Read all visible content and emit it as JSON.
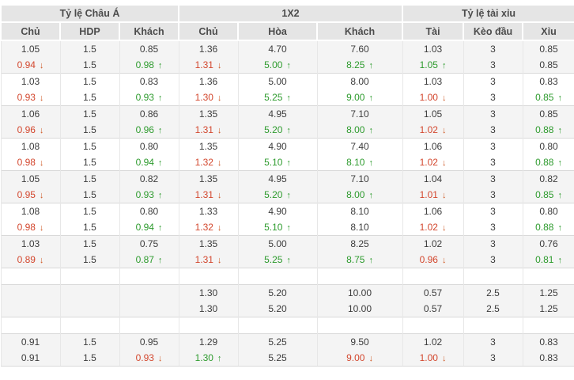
{
  "header": {
    "groups": [
      {
        "label": "Tỷ lệ Châu Á",
        "span": 3
      },
      {
        "label": "1X2",
        "span": 3
      },
      {
        "label": "Tỷ lệ tài xỉu",
        "span": 3
      }
    ],
    "columns": [
      "Chủ",
      "HDP",
      "Khách",
      "Chủ",
      "Hòa",
      "Khách",
      "Tài",
      "Kèo đầu",
      "Xỉu"
    ]
  },
  "icons": {
    "up": "↑",
    "down": "↓"
  },
  "colors": {
    "up": "#2e9b2e",
    "down": "#d3472e",
    "header_bg": "#e5e5e5",
    "row_alt_bg": "#f4f4f4",
    "border": "#d9d9d9"
  },
  "rows": [
    {
      "shade": "gray",
      "block_start": true,
      "cells": [
        {
          "v": "1.05"
        },
        {
          "v": "1.5"
        },
        {
          "v": "0.85"
        },
        {
          "v": "1.36"
        },
        {
          "v": "4.70"
        },
        {
          "v": "7.60"
        },
        {
          "v": "1.03"
        },
        {
          "v": "3"
        },
        {
          "v": "0.85"
        }
      ]
    },
    {
      "shade": "gray",
      "block_start": false,
      "cells": [
        {
          "v": "0.94",
          "t": "down"
        },
        {
          "v": "1.5"
        },
        {
          "v": "0.98",
          "t": "up"
        },
        {
          "v": "1.31",
          "t": "down"
        },
        {
          "v": "5.00",
          "t": "up"
        },
        {
          "v": "8.25",
          "t": "up"
        },
        {
          "v": "1.05",
          "t": "up"
        },
        {
          "v": "3"
        },
        {
          "v": "0.85"
        }
      ]
    },
    {
      "shade": "white",
      "block_start": true,
      "cells": [
        {
          "v": "1.03"
        },
        {
          "v": "1.5"
        },
        {
          "v": "0.83"
        },
        {
          "v": "1.36"
        },
        {
          "v": "5.00"
        },
        {
          "v": "8.00"
        },
        {
          "v": "1.03"
        },
        {
          "v": "3"
        },
        {
          "v": "0.83"
        }
      ]
    },
    {
      "shade": "white",
      "block_start": false,
      "cells": [
        {
          "v": "0.93",
          "t": "down"
        },
        {
          "v": "1.5"
        },
        {
          "v": "0.93",
          "t": "up"
        },
        {
          "v": "1.30",
          "t": "down"
        },
        {
          "v": "5.25",
          "t": "up"
        },
        {
          "v": "9.00",
          "t": "up"
        },
        {
          "v": "1.00",
          "t": "down"
        },
        {
          "v": "3"
        },
        {
          "v": "0.85",
          "t": "up"
        }
      ]
    },
    {
      "shade": "gray",
      "block_start": true,
      "cells": [
        {
          "v": "1.06"
        },
        {
          "v": "1.5"
        },
        {
          "v": "0.86"
        },
        {
          "v": "1.35"
        },
        {
          "v": "4.95"
        },
        {
          "v": "7.10"
        },
        {
          "v": "1.05"
        },
        {
          "v": "3"
        },
        {
          "v": "0.85"
        }
      ]
    },
    {
      "shade": "gray",
      "block_start": false,
      "cells": [
        {
          "v": "0.96",
          "t": "down"
        },
        {
          "v": "1.5"
        },
        {
          "v": "0.96",
          "t": "up"
        },
        {
          "v": "1.31",
          "t": "down"
        },
        {
          "v": "5.20",
          "t": "up"
        },
        {
          "v": "8.00",
          "t": "up"
        },
        {
          "v": "1.02",
          "t": "down"
        },
        {
          "v": "3"
        },
        {
          "v": "0.88",
          "t": "up"
        }
      ]
    },
    {
      "shade": "white",
      "block_start": true,
      "cells": [
        {
          "v": "1.08"
        },
        {
          "v": "1.5"
        },
        {
          "v": "0.80"
        },
        {
          "v": "1.35"
        },
        {
          "v": "4.90"
        },
        {
          "v": "7.40"
        },
        {
          "v": "1.06"
        },
        {
          "v": "3"
        },
        {
          "v": "0.80"
        }
      ]
    },
    {
      "shade": "white",
      "block_start": false,
      "cells": [
        {
          "v": "0.98",
          "t": "down"
        },
        {
          "v": "1.5"
        },
        {
          "v": "0.94",
          "t": "up"
        },
        {
          "v": "1.32",
          "t": "down"
        },
        {
          "v": "5.10",
          "t": "up"
        },
        {
          "v": "8.10",
          "t": "up"
        },
        {
          "v": "1.02",
          "t": "down"
        },
        {
          "v": "3"
        },
        {
          "v": "0.88",
          "t": "up"
        }
      ]
    },
    {
      "shade": "gray",
      "block_start": true,
      "cells": [
        {
          "v": "1.05"
        },
        {
          "v": "1.5"
        },
        {
          "v": "0.82"
        },
        {
          "v": "1.35"
        },
        {
          "v": "4.95"
        },
        {
          "v": "7.10"
        },
        {
          "v": "1.04"
        },
        {
          "v": "3"
        },
        {
          "v": "0.82"
        }
      ]
    },
    {
      "shade": "gray",
      "block_start": false,
      "cells": [
        {
          "v": "0.95",
          "t": "down"
        },
        {
          "v": "1.5"
        },
        {
          "v": "0.93",
          "t": "up"
        },
        {
          "v": "1.31",
          "t": "down"
        },
        {
          "v": "5.20",
          "t": "up"
        },
        {
          "v": "8.00",
          "t": "up"
        },
        {
          "v": "1.01",
          "t": "down"
        },
        {
          "v": "3"
        },
        {
          "v": "0.85",
          "t": "up"
        }
      ]
    },
    {
      "shade": "white",
      "block_start": true,
      "cells": [
        {
          "v": "1.08"
        },
        {
          "v": "1.5"
        },
        {
          "v": "0.80"
        },
        {
          "v": "1.33"
        },
        {
          "v": "4.90"
        },
        {
          "v": "8.10"
        },
        {
          "v": "1.06"
        },
        {
          "v": "3"
        },
        {
          "v": "0.80"
        }
      ]
    },
    {
      "shade": "white",
      "block_start": false,
      "cells": [
        {
          "v": "0.98",
          "t": "down"
        },
        {
          "v": "1.5"
        },
        {
          "v": "0.94",
          "t": "up"
        },
        {
          "v": "1.32",
          "t": "down"
        },
        {
          "v": "5.10",
          "t": "up"
        },
        {
          "v": "8.10"
        },
        {
          "v": "1.02",
          "t": "down"
        },
        {
          "v": "3"
        },
        {
          "v": "0.88",
          "t": "up"
        }
      ]
    },
    {
      "shade": "gray",
      "block_start": true,
      "cells": [
        {
          "v": "1.03"
        },
        {
          "v": "1.5"
        },
        {
          "v": "0.75"
        },
        {
          "v": "1.35"
        },
        {
          "v": "5.00"
        },
        {
          "v": "8.25"
        },
        {
          "v": "1.02"
        },
        {
          "v": "3"
        },
        {
          "v": "0.76"
        }
      ]
    },
    {
      "shade": "gray",
      "block_start": false,
      "cells": [
        {
          "v": "0.89",
          "t": "down"
        },
        {
          "v": "1.5"
        },
        {
          "v": "0.87",
          "t": "up"
        },
        {
          "v": "1.31",
          "t": "down"
        },
        {
          "v": "5.25",
          "t": "up"
        },
        {
          "v": "8.75",
          "t": "up"
        },
        {
          "v": "0.96",
          "t": "down"
        },
        {
          "v": "3"
        },
        {
          "v": "0.81",
          "t": "up"
        }
      ]
    },
    {
      "shade": "white",
      "block_start": true,
      "spacer": true,
      "cells": [
        {},
        {},
        {},
        {},
        {},
        {},
        {},
        {},
        {}
      ]
    },
    {
      "shade": "gray",
      "block_start": true,
      "cells": [
        {
          "v": ""
        },
        {
          "v": ""
        },
        {
          "v": ""
        },
        {
          "v": "1.30"
        },
        {
          "v": "5.20"
        },
        {
          "v": "10.00"
        },
        {
          "v": "0.57"
        },
        {
          "v": "2.5"
        },
        {
          "v": "1.25"
        }
      ]
    },
    {
      "shade": "gray",
      "block_start": false,
      "cells": [
        {
          "v": ""
        },
        {
          "v": ""
        },
        {
          "v": ""
        },
        {
          "v": "1.30"
        },
        {
          "v": "5.20"
        },
        {
          "v": "10.00"
        },
        {
          "v": "0.57"
        },
        {
          "v": "2.5"
        },
        {
          "v": "1.25"
        }
      ]
    },
    {
      "shade": "white",
      "block_start": true,
      "spacer": true,
      "cells": [
        {},
        {},
        {},
        {},
        {},
        {},
        {},
        {},
        {}
      ]
    },
    {
      "shade": "gray",
      "block_start": true,
      "cells": [
        {
          "v": "0.91"
        },
        {
          "v": "1.5"
        },
        {
          "v": "0.95"
        },
        {
          "v": "1.29"
        },
        {
          "v": "5.25"
        },
        {
          "v": "9.50"
        },
        {
          "v": "1.02"
        },
        {
          "v": "3"
        },
        {
          "v": "0.83"
        }
      ]
    },
    {
      "shade": "gray",
      "block_start": false,
      "cells": [
        {
          "v": "0.91"
        },
        {
          "v": "1.5"
        },
        {
          "v": "0.93",
          "t": "down"
        },
        {
          "v": "1.30",
          "t": "up"
        },
        {
          "v": "5.25"
        },
        {
          "v": "9.00",
          "t": "down"
        },
        {
          "v": "1.00",
          "t": "down"
        },
        {
          "v": "3"
        },
        {
          "v": "0.83"
        }
      ]
    }
  ]
}
